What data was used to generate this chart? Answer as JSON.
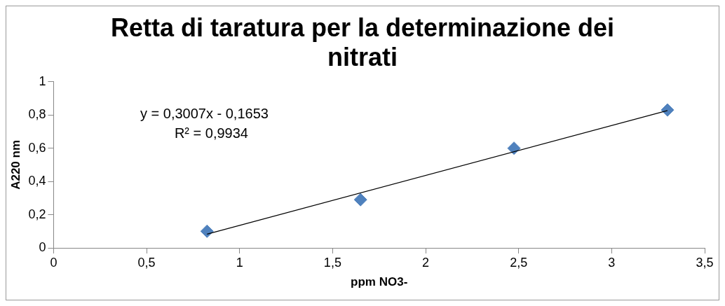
{
  "chart_data": {
    "type": "scatter",
    "title": "Retta di taratura per la determinazione dei nitrati",
    "xlabel": "ppm NO3-",
    "ylabel": "A220 nm",
    "xlim": [
      0,
      3.5
    ],
    "ylim": [
      0,
      1
    ],
    "xticks": [
      0,
      {
        "value": 0.5,
        "label": "0,5"
      },
      1,
      {
        "value": 1.5,
        "label": "1,5"
      },
      2,
      {
        "value": 2.5,
        "label": "2,5"
      },
      3,
      {
        "value": 3.5,
        "label": "3,5"
      }
    ],
    "yticks": [
      0,
      {
        "value": 0.2,
        "label": "0,2"
      },
      {
        "value": 0.4,
        "label": "0,4"
      },
      {
        "value": 0.6,
        "label": "0,6"
      },
      {
        "value": 0.8,
        "label": "0,8"
      },
      1
    ],
    "grid": false,
    "legend": false,
    "annotations": [
      "y = 0,3007x - 0,1653",
      "R² = 0,9934"
    ],
    "series": [
      {
        "type": "scatter",
        "color": "#4f81bd",
        "marker": "diamond",
        "x": [
          0.825,
          1.65,
          2.475,
          3.3
        ],
        "values": [
          0.1,
          0.29,
          0.6,
          0.83
        ]
      },
      {
        "type": "line",
        "color": "#000000",
        "marker": "none",
        "x": [
          0.825,
          3.3
        ],
        "values": [
          0.083,
          0.827
        ]
      }
    ]
  }
}
